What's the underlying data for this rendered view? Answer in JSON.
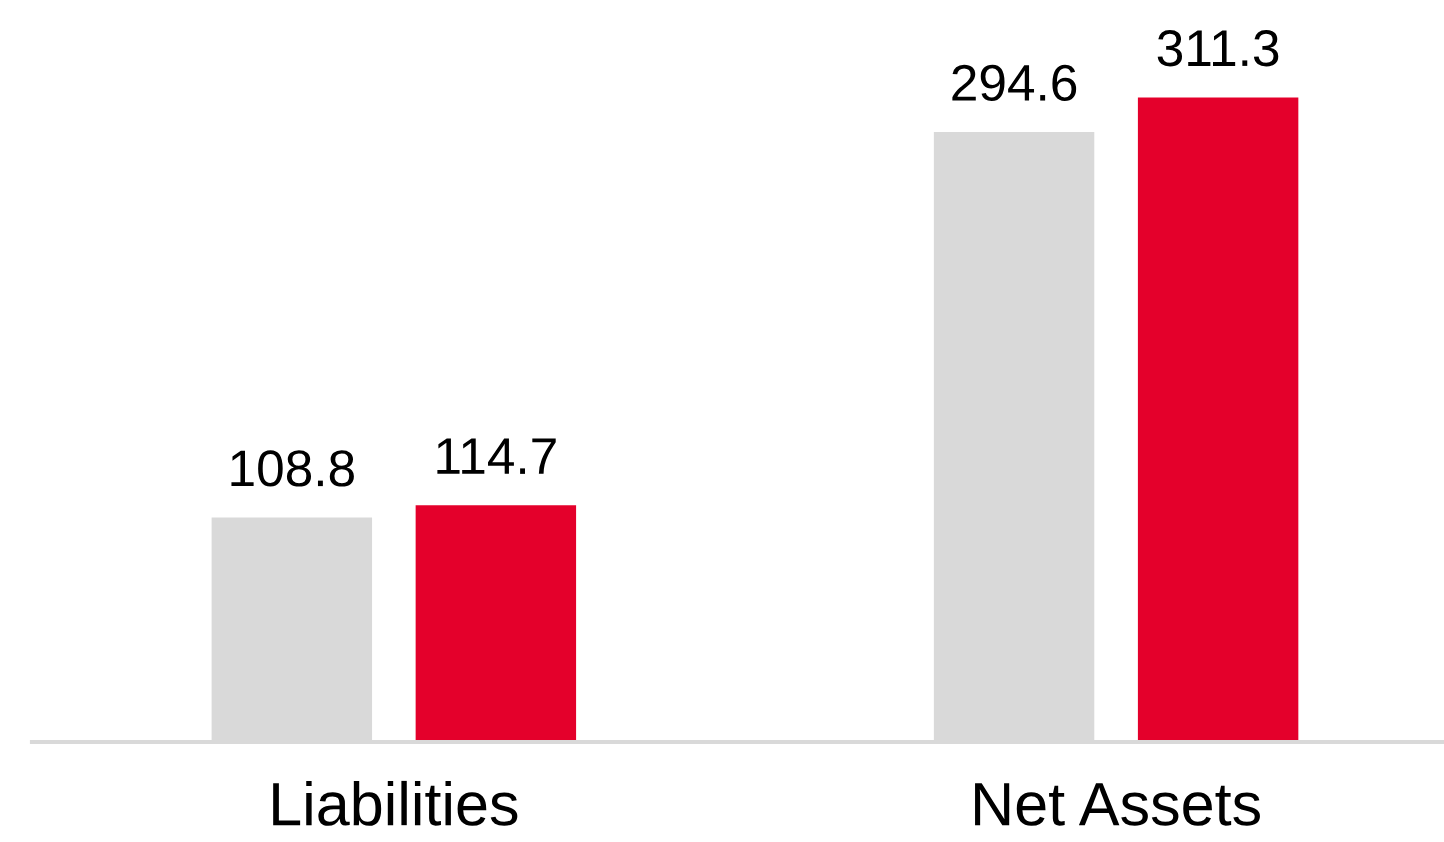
{
  "chart_data": {
    "type": "bar",
    "categories": [
      "Liabilities",
      "Net Assets"
    ],
    "series": [
      {
        "color": "#d9d9d9",
        "values": [
          108.8,
          294.6
        ]
      },
      {
        "color": "#e4002b",
        "values": [
          114.7,
          311.3
        ]
      }
    ],
    "data_labels": true
  }
}
